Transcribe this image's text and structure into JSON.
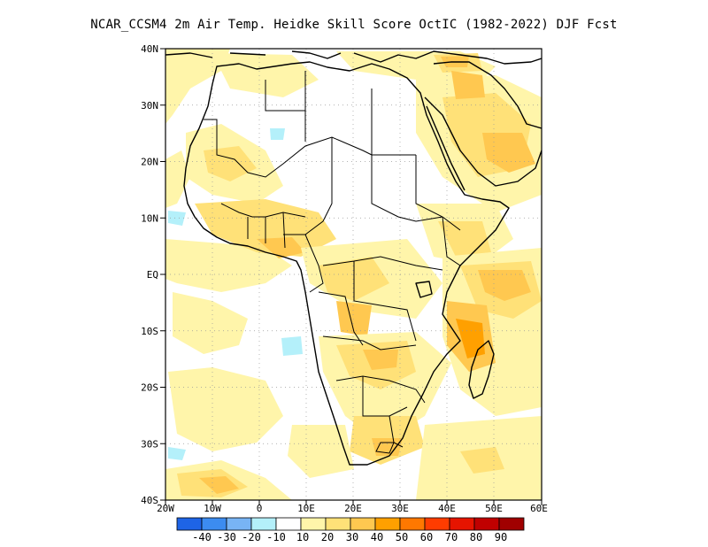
{
  "title": "NCAR_CCSM4  2m Air Temp. Heidke Skill Score OctIC (1982-2022) DJF Fcst",
  "map": {
    "lat_labels": [
      "40N",
      "30N",
      "20N",
      "10N",
      "EQ",
      "10S",
      "20S",
      "30S",
      "40S"
    ],
    "lon_labels": [
      "20W",
      "10W",
      "0",
      "10E",
      "20E",
      "30E",
      "40E",
      "50E",
      "60E"
    ],
    "lon_range": [
      -20,
      60
    ],
    "lat_range": [
      -40,
      40
    ],
    "ocean_color": "#ffffff",
    "colorbar": {
      "colors": [
        "#1e64e6",
        "#3c8cf0",
        "#78b4f5",
        "#b4f0fa",
        "#ffffff",
        "#fff5aa",
        "#ffe178",
        "#ffc850",
        "#ffa000",
        "#ff7800",
        "#ff3c00",
        "#e61400",
        "#c00000",
        "#a00000"
      ],
      "labels": [
        "-40",
        "-30",
        "-20",
        "-10",
        "10",
        "20",
        "30",
        "40",
        "50",
        "60",
        "70",
        "80",
        "90"
      ]
    }
  }
}
